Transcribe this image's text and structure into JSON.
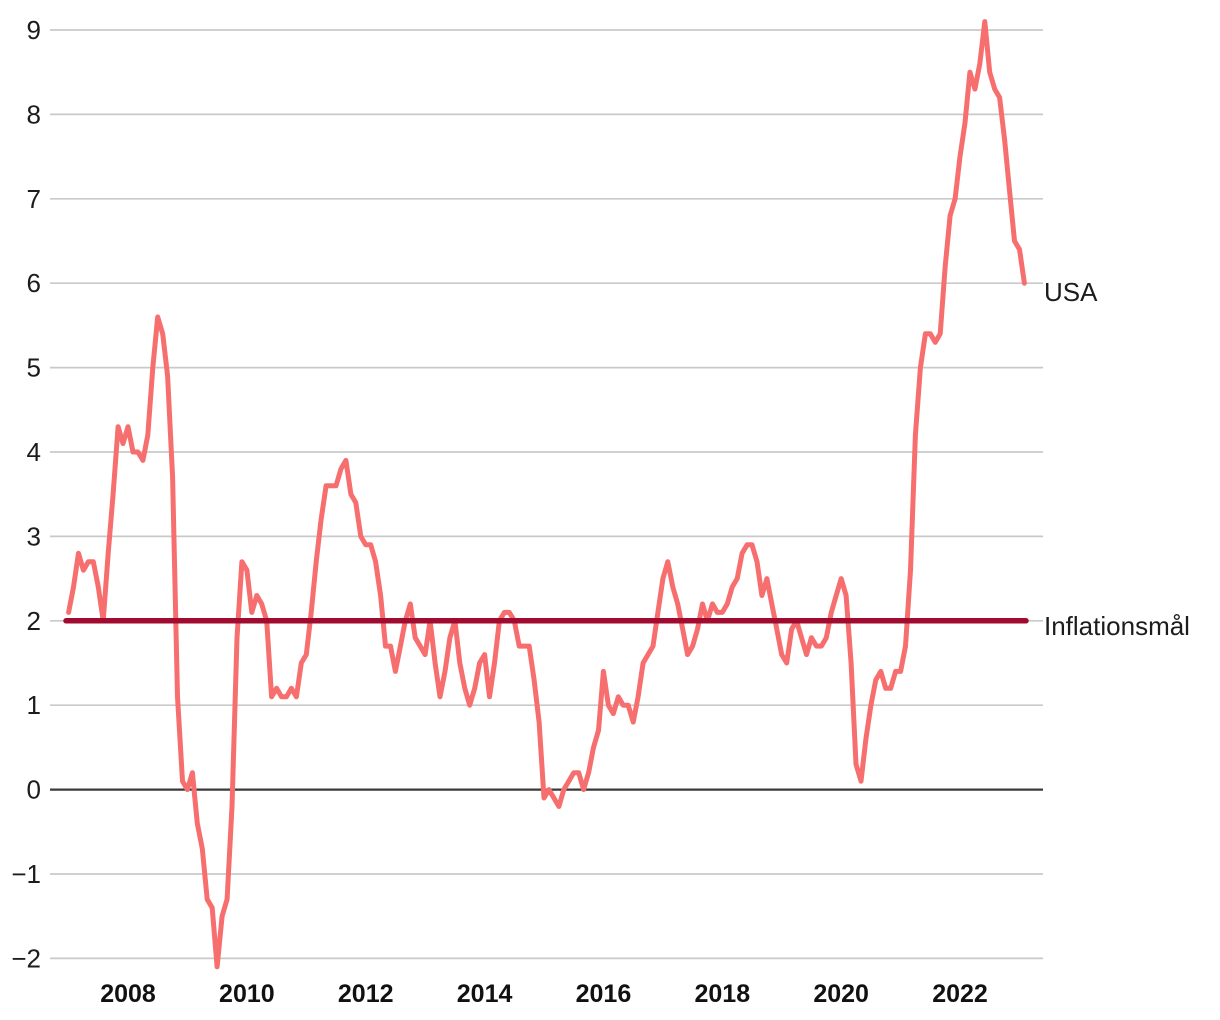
{
  "chart_data": {
    "type": "line",
    "title": "",
    "grid": "horizontal",
    "legend_position": "right-end-of-line",
    "colors": {
      "series_pink": "#f76e6e",
      "reference_dark_red": "#a00c2f",
      "grid": "#c9c9c9",
      "zero_line": "#3a3a3a",
      "tick_label": "#1c1c1c"
    },
    "y_axis": {
      "ticks": [
        9,
        8,
        7,
        6,
        5,
        4,
        3,
        2,
        1,
        0,
        -1,
        -2
      ],
      "range": [
        -2.35,
        9.25
      ]
    },
    "x_axis": {
      "ticks": [
        2008,
        2010,
        2012,
        2014,
        2016,
        2018,
        2020,
        2022
      ],
      "range_years": [
        2006.85,
        2023.35
      ]
    },
    "start": {
      "year": 2007,
      "month": 1
    },
    "frequency": "monthly",
    "series": [
      {
        "name": "USA",
        "color": "#f76e6e",
        "values": [
          2.1,
          2.4,
          2.8,
          2.6,
          2.7,
          2.7,
          2.4,
          2.0,
          2.8,
          3.5,
          4.3,
          4.1,
          4.3,
          4.0,
          4.0,
          3.9,
          4.2,
          5.0,
          5.6,
          5.4,
          4.9,
          3.7,
          1.1,
          0.1,
          0.0,
          0.2,
          -0.4,
          -0.7,
          -1.3,
          -1.4,
          -2.1,
          -1.5,
          -1.3,
          -0.2,
          1.8,
          2.7,
          2.6,
          2.1,
          2.3,
          2.2,
          2.0,
          1.1,
          1.2,
          1.1,
          1.1,
          1.2,
          1.1,
          1.5,
          1.6,
          2.1,
          2.7,
          3.2,
          3.6,
          3.6,
          3.6,
          3.8,
          3.9,
          3.5,
          3.4,
          3.0,
          2.9,
          2.9,
          2.7,
          2.3,
          1.7,
          1.7,
          1.4,
          1.7,
          2.0,
          2.2,
          1.8,
          1.7,
          1.6,
          2.0,
          1.5,
          1.1,
          1.4,
          1.8,
          2.0,
          1.5,
          1.2,
          1.0,
          1.2,
          1.5,
          1.6,
          1.1,
          1.5,
          2.0,
          2.1,
          2.1,
          2.0,
          1.7,
          1.7,
          1.7,
          1.3,
          0.8,
          -0.1,
          0.0,
          -0.1,
          -0.2,
          0.0,
          0.1,
          0.2,
          0.2,
          0.0,
          0.2,
          0.5,
          0.7,
          1.4,
          1.0,
          0.9,
          1.1,
          1.0,
          1.0,
          0.8,
          1.1,
          1.5,
          1.6,
          1.7,
          2.1,
          2.5,
          2.7,
          2.4,
          2.2,
          1.9,
          1.6,
          1.7,
          1.9,
          2.2,
          2.0,
          2.2,
          2.1,
          2.1,
          2.2,
          2.4,
          2.5,
          2.8,
          2.9,
          2.9,
          2.7,
          2.3,
          2.5,
          2.2,
          1.9,
          1.6,
          1.5,
          1.9,
          2.0,
          1.8,
          1.6,
          1.8,
          1.7,
          1.7,
          1.8,
          2.1,
          2.3,
          2.5,
          2.3,
          1.5,
          0.3,
          0.1,
          0.6,
          1.0,
          1.3,
          1.4,
          1.2,
          1.2,
          1.4,
          1.4,
          1.7,
          2.6,
          4.2,
          5.0,
          5.4,
          5.4,
          5.3,
          5.4,
          6.2,
          6.8,
          7.0,
          7.5,
          7.9,
          8.5,
          8.3,
          8.6,
          9.1,
          8.5,
          8.3,
          8.2,
          7.7,
          7.1,
          6.5,
          6.4,
          6.0
        ]
      }
    ],
    "reference_line": {
      "label": "Inflationsmål",
      "value": 2,
      "color": "#a00c2f"
    }
  }
}
